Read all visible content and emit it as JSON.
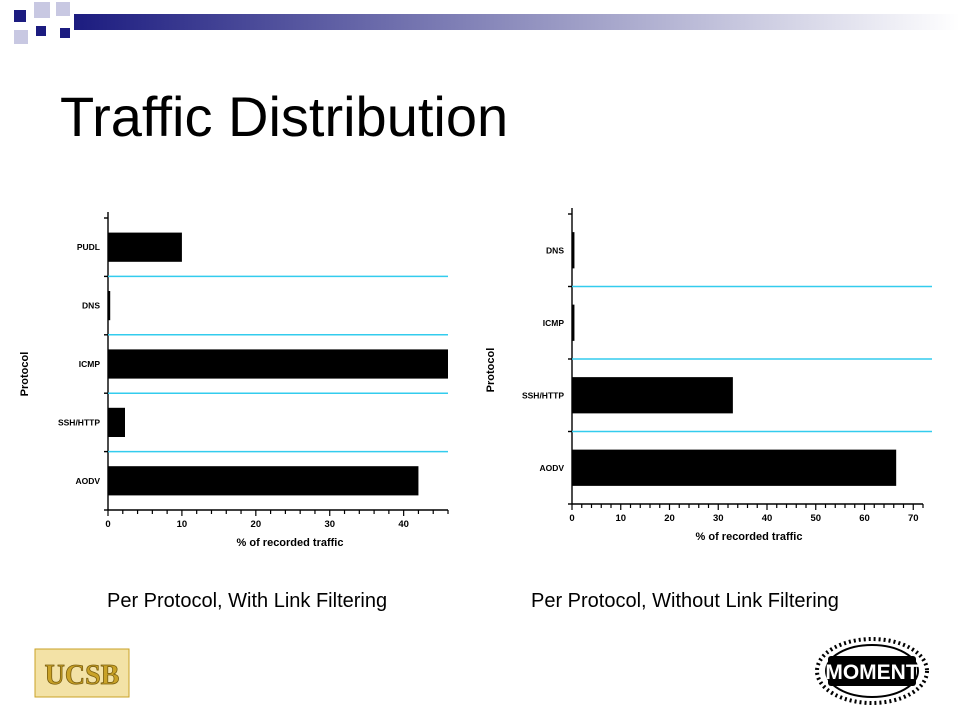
{
  "slide": {
    "title": "Traffic Distribution",
    "captions": [
      "Per Protocol, With Link Filtering",
      "Per Protocol, Without Link Filtering"
    ]
  },
  "logos": {
    "left": {
      "text": "UCSB",
      "icon": "ucsb-logo"
    },
    "right": {
      "text": "MOMENT",
      "icon": "moment-logo"
    }
  },
  "colors": {
    "bar": "#000000",
    "separator": "#33ccee",
    "deco_navy": "#1c1c80",
    "deco_light": "#c8c8e2",
    "ucsb_gold": "#c9a227"
  },
  "chart_data": [
    {
      "type": "bar",
      "orientation": "horizontal",
      "categories": [
        "PUDL",
        "DNS",
        "ICMP",
        "SSH/HTTP",
        "AODV"
      ],
      "values": [
        10,
        0.3,
        46,
        2.3,
        42
      ],
      "xlabel": "% of recorded traffic",
      "ylabel": "Protocol",
      "xlim": [
        0,
        46
      ],
      "xticks": [
        0,
        10,
        20,
        30,
        40
      ]
    },
    {
      "type": "bar",
      "orientation": "horizontal",
      "categories": [
        "DNS",
        "ICMP",
        "SSH/HTTP",
        "AODV"
      ],
      "values": [
        0.5,
        0.5,
        33,
        66.5
      ],
      "xlabel": "% of recorded traffic",
      "ylabel": "Protocol",
      "xlim": [
        0,
        72
      ],
      "xticks": [
        0,
        10,
        20,
        30,
        40,
        50,
        60,
        70
      ]
    }
  ]
}
